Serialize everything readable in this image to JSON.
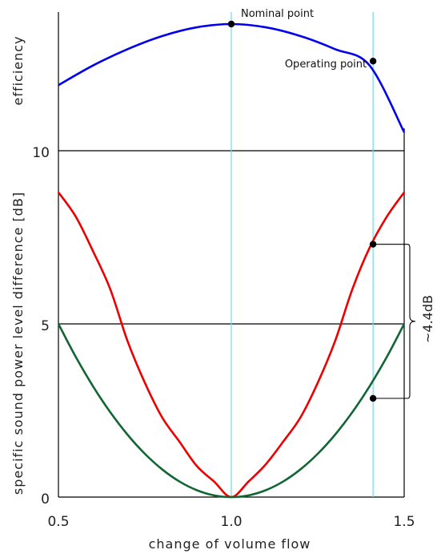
{
  "chart_data": {
    "type": "line",
    "xlabel": "change of volume flow",
    "ylabel": "specific sound power level difference [dB]",
    "top_panel_label": "efficiency",
    "xlim": [
      0.5,
      1.5
    ],
    "ylim": [
      0,
      10
    ],
    "x_ticks": [
      "0.5",
      "1.0",
      "1.5"
    ],
    "y_ticks": [
      "0",
      "5",
      "10"
    ],
    "grid": "horizontal lines at y ticks",
    "series": [
      {
        "color": "#0000ee",
        "panel": "efficiency",
        "x": [
          0.5,
          0.6,
          0.7,
          0.8,
          0.9,
          1.0,
          1.1,
          1.2,
          1.3,
          1.4,
          1.5
        ],
        "y": [
          0.44,
          0.62,
          0.77,
          0.89,
          0.97,
          1.0,
          0.97,
          0.89,
          0.77,
          0.62,
          0.0
        ]
      },
      {
        "color": "#ee0000",
        "panel": "sound",
        "x": [
          0.5,
          0.55,
          0.6,
          0.65,
          0.7,
          0.75,
          0.8,
          0.85,
          0.9,
          0.95,
          1.0,
          1.05,
          1.1,
          1.15,
          1.2,
          1.25,
          1.3,
          1.35,
          1.4,
          1.45,
          1.5
        ],
        "y": [
          8.8,
          8.1,
          7.1,
          6.0,
          4.5,
          3.3,
          2.3,
          1.6,
          0.9,
          0.45,
          0.0,
          0.45,
          0.95,
          1.6,
          2.3,
          3.3,
          4.5,
          6.0,
          7.2,
          8.1,
          8.8
        ]
      },
      {
        "color": "#116633",
        "panel": "sound",
        "x": [
          0.5,
          0.55,
          0.6,
          0.65,
          0.7,
          0.75,
          0.8,
          0.85,
          0.9,
          0.95,
          1.0,
          1.05,
          1.1,
          1.15,
          1.2,
          1.25,
          1.3,
          1.35,
          1.4,
          1.45,
          1.5
        ],
        "y": [
          5.0,
          4.05,
          3.2,
          2.45,
          1.8,
          1.25,
          0.8,
          0.45,
          0.2,
          0.05,
          0.0,
          0.05,
          0.2,
          0.45,
          0.8,
          1.25,
          1.8,
          2.45,
          3.2,
          4.05,
          5.0
        ]
      }
    ],
    "points": [
      {
        "label": "Nominal point",
        "x": 1.0,
        "panel": "efficiency",
        "y": 1.0
      },
      {
        "label": "Operating point",
        "x": 1.41,
        "panel": "efficiency",
        "y": 0.66
      },
      {
        "label": "",
        "x": 1.41,
        "panel": "sound",
        "y": 7.3
      },
      {
        "label": "",
        "x": 1.41,
        "panel": "sound",
        "y": 2.85
      }
    ],
    "vlines": [
      1.0,
      1.41
    ],
    "vline_color": "#66e0f0",
    "brace_label": "~4.4dB"
  }
}
